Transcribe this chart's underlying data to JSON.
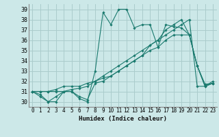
{
  "xlabel": "Humidex (Indice chaleur)",
  "ylabel": "",
  "background_color": "#cce8e8",
  "grid_color": "#aacccc",
  "line_color": "#1a7a6e",
  "xlim": [
    -0.5,
    23.5
  ],
  "ylim": [
    29.5,
    39.5
  ],
  "xticks": [
    0,
    1,
    2,
    3,
    4,
    5,
    6,
    7,
    8,
    9,
    10,
    11,
    12,
    13,
    14,
    15,
    16,
    17,
    18,
    19,
    20,
    21,
    22,
    23
  ],
  "yticks": [
    30,
    31,
    32,
    33,
    34,
    35,
    36,
    37,
    38,
    39
  ],
  "series": [
    [
      31,
      30.7,
      30,
      30,
      31,
      31,
      30.3,
      30,
      33,
      38.7,
      37.5,
      39,
      39,
      37.2,
      37.5,
      37.5,
      35.3,
      37.5,
      37.3,
      37.2,
      36.5,
      33.5,
      31.5,
      31.8
    ],
    [
      31,
      30.5,
      30,
      30.5,
      31,
      31,
      30.5,
      30.2,
      31.8,
      32,
      32.5,
      33,
      33.5,
      34,
      34.5,
      35,
      35.3,
      36,
      36.5,
      36.5,
      36.5,
      33.5,
      31.7,
      31.8
    ],
    [
      31,
      31,
      31,
      31,
      31,
      31.2,
      31.3,
      31.5,
      32,
      32.5,
      33,
      33.5,
      34,
      34.5,
      35,
      35.5,
      36,
      36.5,
      37,
      37.5,
      38,
      31.5,
      31.5,
      32
    ],
    [
      31,
      31,
      31,
      31.2,
      31.5,
      31.5,
      31.5,
      31.8,
      32,
      32.3,
      32.5,
      33,
      33.5,
      34,
      34.5,
      35.5,
      36,
      37,
      37.5,
      38,
      36.5,
      33.5,
      31.5,
      31.8
    ]
  ]
}
